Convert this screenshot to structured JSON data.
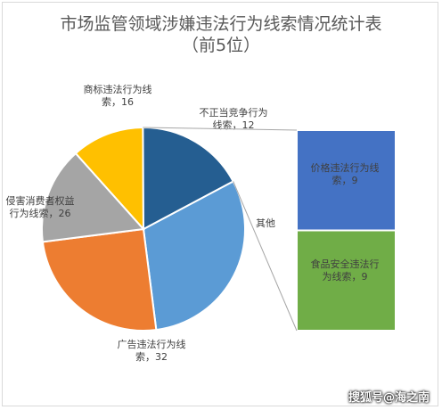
{
  "chart_data": {
    "type": "pie",
    "title": "市场监管领域涉嫌违法行为线索情况统计表",
    "subtitle": "（前5位）",
    "slices": [
      {
        "label": [
          "广告违法行为线",
          "索，32"
        ],
        "value": 32,
        "color": "#5b9bd5"
      },
      {
        "label": [
          "侵害消费者权益",
          "行为线索，26"
        ],
        "value": 26,
        "color": "#ed7d31"
      },
      {
        "label": [
          "商标违法行为线",
          "索，16"
        ],
        "value": 16,
        "color": "#a5a5a5"
      },
      {
        "label": [
          "不正当竞争行为",
          "线索，12"
        ],
        "value": 12,
        "color": "#ffc000"
      },
      {
        "label": [
          "其他"
        ],
        "value": 18,
        "color": "#255e91"
      }
    ],
    "breakdown": [
      {
        "label": [
          "价格违法行为线",
          "索，9"
        ],
        "value": 9,
        "color": "#4472c4"
      },
      {
        "label": [
          "食品安全违法行",
          "为线索，9"
        ],
        "value": 9,
        "color": "#70ad47"
      }
    ]
  },
  "watermark": "搜狐号@海之南"
}
